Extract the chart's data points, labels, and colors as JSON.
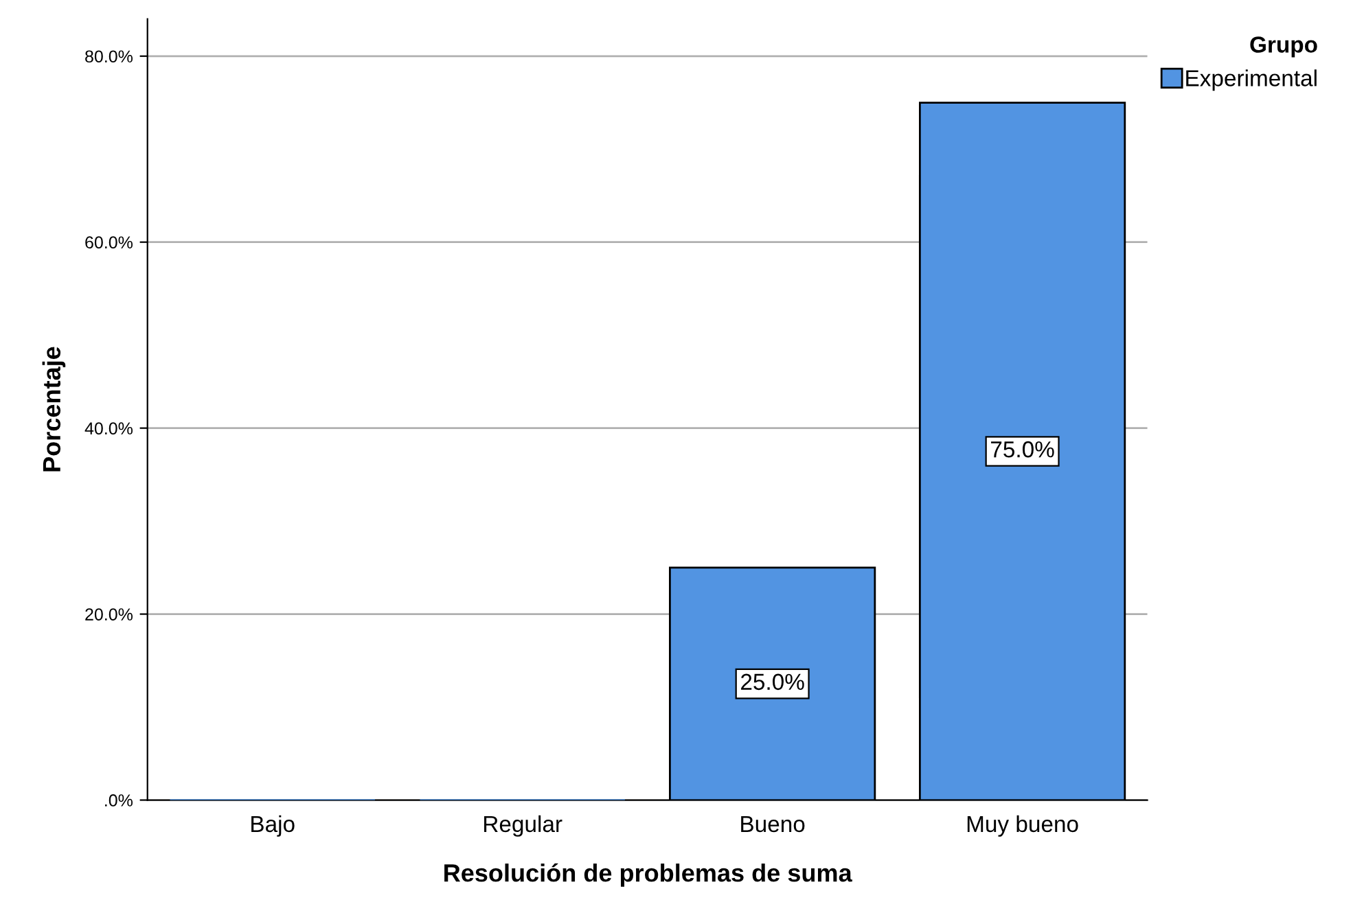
{
  "chart_data": {
    "type": "bar",
    "xlabel": "Resolución de problemas de suma",
    "ylabel": "Porcentaje",
    "legend_title": "Grupo",
    "categories": [
      "Bajo",
      "Regular",
      "Bueno",
      "Muy bueno"
    ],
    "series": [
      {
        "name": "Experimental",
        "color": "#5294e2",
        "values": [
          0,
          0,
          25,
          75
        ],
        "value_labels": [
          null,
          null,
          "25.0%",
          "75.0%"
        ]
      }
    ],
    "ylim": [
      0,
      84
    ],
    "yticks": [
      {
        "value": 0,
        "label": ".0%"
      },
      {
        "value": 20,
        "label": "20.0%"
      },
      {
        "value": 40,
        "label": "40.0%"
      },
      {
        "value": 60,
        "label": "60.0%"
      },
      {
        "value": 80,
        "label": "80.0%"
      }
    ],
    "grid": "y",
    "legend": "top right"
  }
}
